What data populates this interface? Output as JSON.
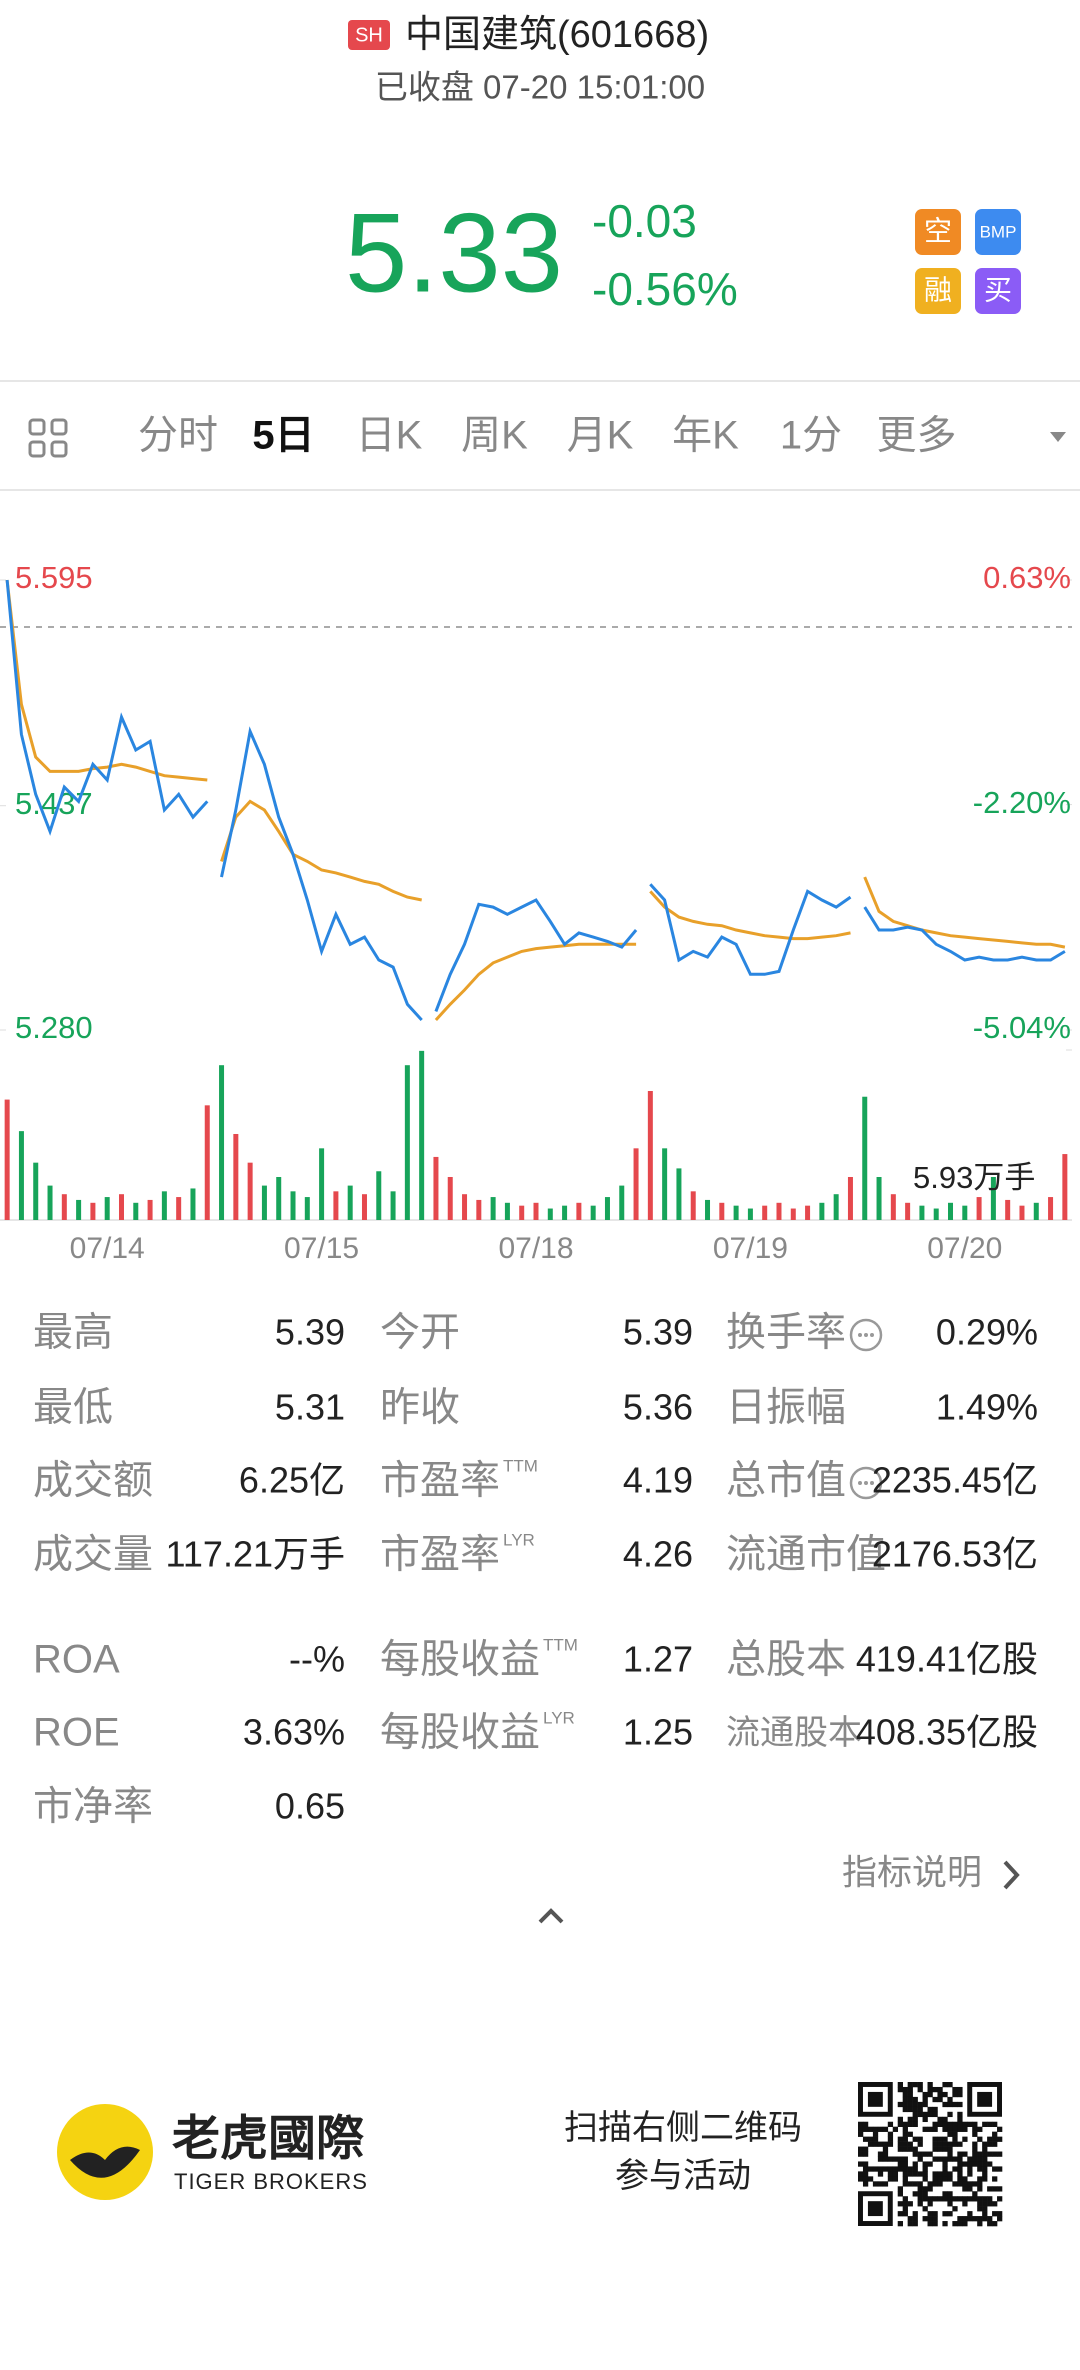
{
  "header": {
    "badge": "SH",
    "name": "中国建筑(601668)",
    "status": "已收盘 07-20 15:01:00"
  },
  "quote": {
    "price": "5.33",
    "change": "-0.03",
    "change_pct": "-0.56%",
    "color": "#17a45a"
  },
  "badges": [
    "空",
    "BMP",
    "融",
    "买"
  ],
  "tabs": {
    "items": [
      "分时",
      "5日",
      "日K",
      "周K",
      "月K",
      "年K",
      "1分",
      "更多"
    ],
    "active": 1
  },
  "chart_data": {
    "type": "line",
    "x_labels": [
      "07/14",
      "07/15",
      "07/18",
      "07/19",
      "07/20"
    ],
    "ylim": [
      5.28,
      5.595
    ],
    "yticks": [
      {
        "value": 5.28,
        "label": "5.280"
      },
      5.437,
      5.595
    ],
    "y2lim": [
      -5.04,
      0.63
    ],
    "y2ticks": [
      {
        "value": -5.04,
        "label": "-5.04%"
      },
      {
        "value": -2.2,
        "label": "-2.20%"
      },
      {
        "value": 0.63,
        "label": "0.63%"
      }
    ],
    "series": [
      {
        "color": "#2a86e0",
        "values": [
          5.595,
          5.487,
          5.445,
          5.419,
          5.45,
          5.44,
          5.466,
          5.455,
          5.499,
          5.476,
          5.482,
          5.434,
          5.445,
          5.429,
          5.44,
          null,
          5.387,
          5.434,
          5.489,
          5.466,
          5.429,
          5.403,
          5.371,
          5.335,
          5.361,
          5.34,
          5.345,
          5.329,
          5.324,
          5.298,
          5.287,
          null,
          5.293,
          5.319,
          5.34,
          5.368,
          5.366,
          5.361,
          5.366,
          5.371,
          5.356,
          5.34,
          5.348,
          5.345,
          5.342,
          5.338,
          5.35,
          null,
          5.382,
          5.371,
          5.329,
          5.335,
          5.331,
          5.345,
          5.34,
          5.319,
          5.319,
          5.321,
          5.35,
          5.377,
          5.371,
          5.366,
          5.373,
          null,
          5.366,
          5.35,
          5.35,
          5.352,
          5.35,
          5.34,
          5.335,
          5.329,
          5.331,
          5.329,
          5.329,
          5.331,
          5.329,
          5.329,
          5.335
        ]
      },
      {
        "color": "#e8a02a",
        "values": [
          5.595,
          5.508,
          5.471,
          5.461,
          5.461,
          5.461,
          5.463,
          5.464,
          5.466,
          5.464,
          5.461,
          5.458,
          5.457,
          5.456,
          5.455,
          null,
          5.398,
          5.429,
          5.44,
          5.434,
          5.419,
          5.403,
          5.398,
          5.392,
          5.39,
          5.387,
          5.384,
          5.382,
          5.377,
          5.373,
          5.371,
          null,
          5.287,
          5.298,
          5.308,
          5.319,
          5.327,
          5.331,
          5.335,
          5.337,
          5.338,
          5.339,
          5.34,
          5.34,
          5.34,
          5.34,
          5.34,
          null,
          5.377,
          5.366,
          5.359,
          5.356,
          5.354,
          5.353,
          5.35,
          5.348,
          5.346,
          5.345,
          5.344,
          5.344,
          5.345,
          5.346,
          5.348,
          null,
          5.387,
          5.363,
          5.356,
          5.353,
          5.35,
          5.348,
          5.346,
          5.345,
          5.344,
          5.343,
          5.342,
          5.341,
          5.34,
          5.34,
          5.338
        ]
      }
    ],
    "volume": {
      "up_color": "#e5484d",
      "down_color": "#17a45a",
      "ylim": [
        0,
        5.93
      ],
      "ticks": [
        {
          "value": 5.93,
          "label": "5.93万手"
        }
      ],
      "values": [
        4.2,
        3.1,
        2.0,
        1.2,
        0.9,
        0.7,
        0.6,
        0.8,
        0.9,
        0.6,
        0.7,
        1.0,
        0.8,
        1.1,
        4.0,
        null,
        5.4,
        3.0,
        2.0,
        1.2,
        1.5,
        1.0,
        0.8,
        2.5,
        1.0,
        1.2,
        0.9,
        1.7,
        1.0,
        5.4,
        5.9,
        null,
        2.2,
        1.5,
        0.9,
        0.7,
        0.8,
        0.6,
        0.5,
        0.6,
        0.4,
        0.5,
        0.6,
        0.5,
        0.8,
        1.2,
        2.5,
        null,
        4.5,
        2.5,
        1.8,
        1.0,
        0.7,
        0.6,
        0.5,
        0.4,
        0.5,
        0.6,
        0.4,
        0.5,
        0.6,
        0.9,
        1.5,
        null,
        4.3,
        1.5,
        0.9,
        0.6,
        0.5,
        0.4,
        0.6,
        0.5,
        0.8,
        1.5,
        0.7,
        0.5,
        0.6,
        0.8,
        2.3
      ]
    }
  },
  "stats": {
    "rows": [
      [
        {
          "label": "最高",
          "value": "5.39"
        },
        {
          "label": "今开",
          "value": "5.39"
        },
        {
          "label": "换手率",
          "info_icon": true,
          "value": "0.29%"
        }
      ],
      [
        {
          "label": "最低",
          "value": "5.31"
        },
        {
          "label": "昨收",
          "value": "5.36"
        },
        {
          "label": "日振幅",
          "value": "1.49%"
        }
      ],
      [
        {
          "label": "成交额",
          "value": "6.25亿"
        },
        {
          "label": "市盈率",
          "sup": "TTM",
          "value": "4.19"
        },
        {
          "label": "总市值",
          "info_icon": true,
          "value": "2235.45亿"
        }
      ],
      [
        {
          "label": "成交量",
          "value": "117.21万手"
        },
        {
          "label": "市盈率",
          "sup": "LYR",
          "value": "4.26"
        },
        {
          "label": "流通市值",
          "value": "2176.53亿"
        }
      ],
      [
        {
          "label": "ROA",
          "value": "--%"
        },
        {
          "label": "每股收益",
          "sup": "TTM",
          "value": "1.27"
        },
        {
          "label": "总股本",
          "value": "419.41亿股"
        }
      ],
      [
        {
          "label": "ROE",
          "value": "3.63%"
        },
        {
          "label": "每股收益",
          "sup": "LYR",
          "value": "1.25"
        },
        {
          "label": "流通股本",
          "value": "408.35亿股"
        }
      ],
      [
        {
          "label": "市净率",
          "value": "0.65"
        }
      ]
    ],
    "link": "指标说明"
  },
  "footer": {
    "brand": "老虎國際",
    "brand_en": "TIGER BROKERS",
    "line1": "扫描右侧二维码",
    "line2": "参与活动"
  }
}
